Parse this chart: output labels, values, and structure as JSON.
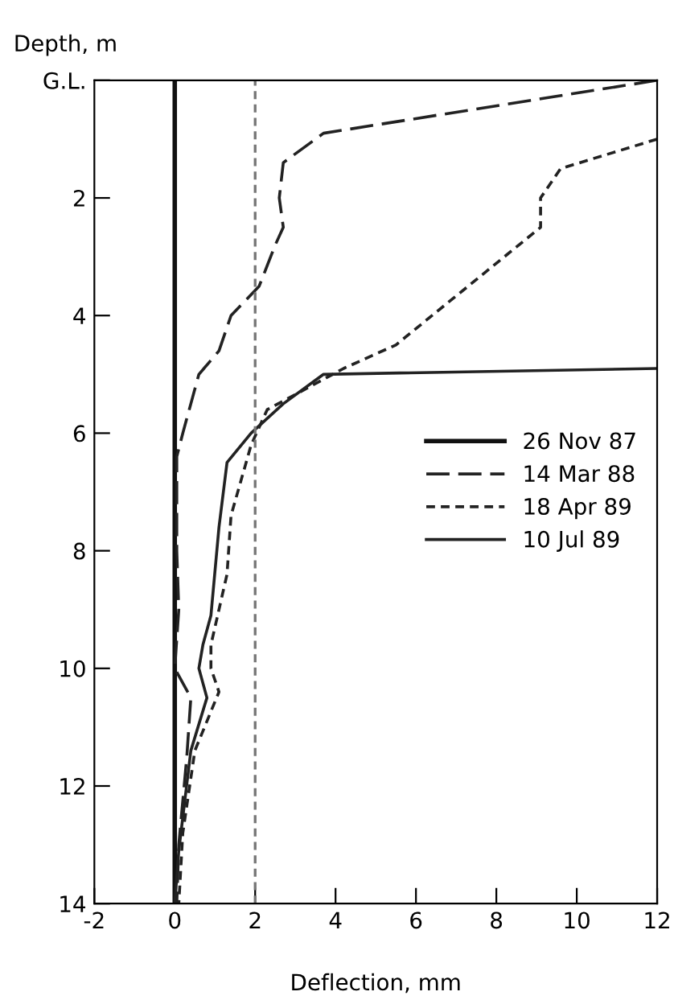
{
  "chart_data": {
    "type": "line",
    "xlabel": "Deflection, mm",
    "ylabel": "Depth, m",
    "xlim": [
      -2,
      12
    ],
    "xticks": [
      -2,
      0,
      2,
      4,
      6,
      8,
      10,
      12
    ],
    "ylim": [
      14,
      0
    ],
    "yticks": [
      {
        "value": 0,
        "label": "G.L."
      },
      2,
      4,
      6,
      8,
      10,
      12,
      14
    ],
    "grid": false,
    "legend": "center right",
    "marker": "none",
    "ref_lines": [
      {
        "axis": "x",
        "value": 2,
        "line_style": "dotted",
        "color": "#777777"
      }
    ],
    "series": [
      {
        "name": "26 Nov 87",
        "color": "#111111",
        "line_style": "solid",
        "x": [
          0,
          0
        ],
        "values": [
          0,
          14
        ]
      },
      {
        "name": "14 Mar 88",
        "color": "#222222",
        "line_style": "dashed",
        "x": [
          12,
          3.7,
          2.7,
          2.6,
          2.7,
          2.5,
          2.1,
          1.4,
          1.1,
          0.6,
          0.2,
          0.05,
          0.05,
          0.1,
          0.0,
          0.4,
          0.3,
          0.1,
          0.05
        ],
        "values": [
          0,
          0.9,
          1.4,
          2.0,
          2.5,
          2.8,
          3.5,
          4.0,
          4.6,
          5.0,
          6.0,
          6.4,
          8.0,
          9.0,
          10.0,
          10.5,
          11.5,
          13.0,
          14.0
        ]
      },
      {
        "name": "18 Apr 89",
        "color": "#222222",
        "line_style": "dotted",
        "x": [
          12,
          9.6,
          9.1,
          9.1,
          5.5,
          4.2,
          2.3,
          1.9,
          1.4,
          1.3,
          0.9,
          0.9,
          1.1,
          0.5,
          0.2,
          0.1
        ],
        "values": [
          1.0,
          1.5,
          2.0,
          2.5,
          4.5,
          4.9,
          5.6,
          6.2,
          7.4,
          8.4,
          9.6,
          10.0,
          10.4,
          11.4,
          12.8,
          14.0
        ]
      },
      {
        "name": "10 Jul 89",
        "color": "#222222",
        "line_style": "solid",
        "x": [
          12,
          3.7,
          2.7,
          1.9,
          1.3,
          1.1,
          0.9,
          0.7,
          0.6,
          0.8,
          0.4,
          0.1,
          0.0
        ],
        "values": [
          4.9,
          5.0,
          5.5,
          6.0,
          6.5,
          7.6,
          9.1,
          9.6,
          10.0,
          10.5,
          11.4,
          13.1,
          14.0
        ]
      }
    ]
  }
}
